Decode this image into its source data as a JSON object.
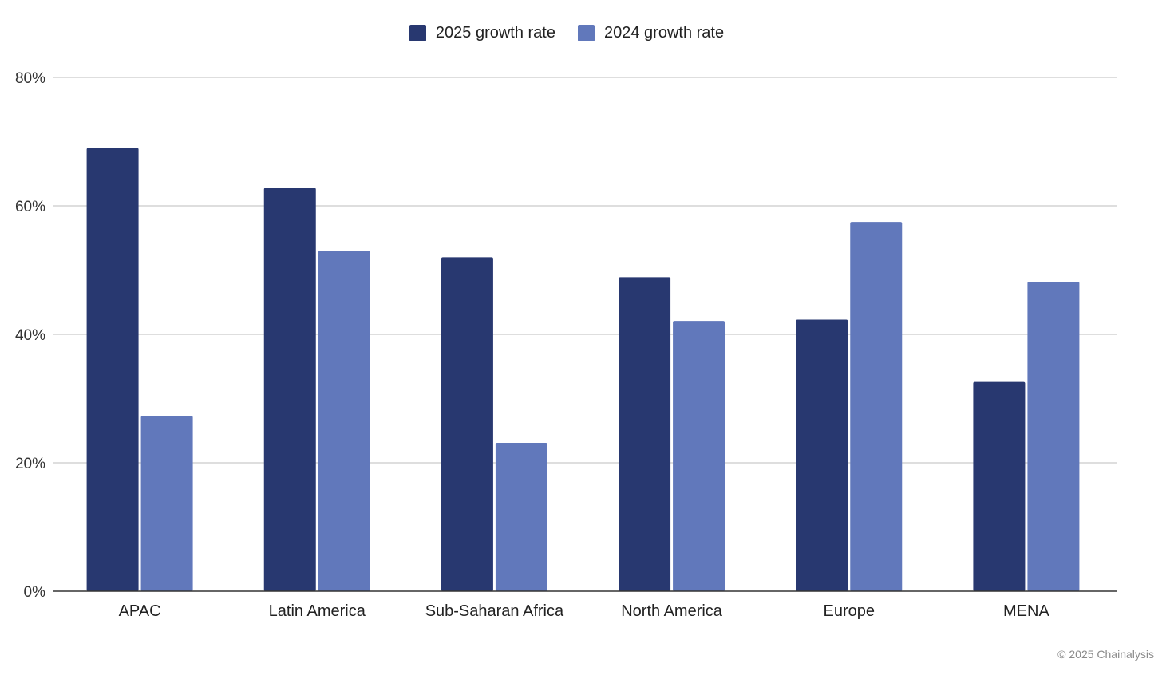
{
  "chart_data": {
    "type": "bar",
    "categories": [
      "APAC",
      "Latin America",
      "Sub-Saharan Africa",
      "North America",
      "Europe",
      "MENA"
    ],
    "series": [
      {
        "name": "2025 growth rate",
        "color": "#283870",
        "values": [
          69,
          62.8,
          52,
          48.9,
          42.3,
          32.6
        ]
      },
      {
        "name": "2024 growth rate",
        "color": "#6178bb",
        "values": [
          27.3,
          53,
          23.1,
          42.1,
          57.5,
          48.2
        ]
      }
    ],
    "ylim": [
      0,
      80
    ],
    "yticks": [
      0,
      20,
      40,
      60,
      80
    ],
    "ytick_labels": [
      "0%",
      "20%",
      "40%",
      "60%",
      "80%"
    ],
    "grid": true,
    "legend_position": "top-center",
    "xlabel": "",
    "ylabel": ""
  },
  "credit": "© 2025 Chainalysis"
}
